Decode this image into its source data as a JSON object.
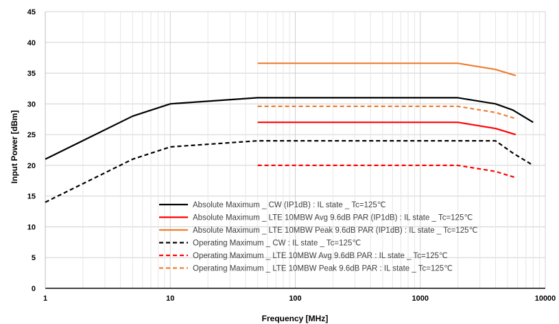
{
  "chart_data": {
    "type": "line",
    "xlabel": "Frequency [MHz]",
    "ylabel": "Input Power [dBm]",
    "x_scale": "log",
    "xlim": [
      1,
      10000
    ],
    "ylim": [
      0,
      45
    ],
    "grid": true,
    "legend_position": "bottom-center",
    "x_ticks": [
      {
        "value": 1,
        "label": "1"
      },
      {
        "value": 10,
        "label": "10"
      },
      {
        "value": 100,
        "label": "100"
      },
      {
        "value": 1000,
        "label": "1000"
      },
      {
        "value": 10000,
        "label": "10000"
      }
    ],
    "y_ticks": [
      {
        "value": 0,
        "label": "0"
      },
      {
        "value": 5,
        "label": "5"
      },
      {
        "value": 10,
        "label": "10"
      },
      {
        "value": 15,
        "label": "15"
      },
      {
        "value": 20,
        "label": "20"
      },
      {
        "value": 25,
        "label": "25"
      },
      {
        "value": 30,
        "label": "30"
      },
      {
        "value": 35,
        "label": "35"
      },
      {
        "value": 40,
        "label": "40"
      },
      {
        "value": 45,
        "label": "45"
      }
    ],
    "series": [
      {
        "name": "Absolute Maximum _ CW (IP1dB) : IL state _ Tc=125℃",
        "color": "#000000",
        "dash": "solid",
        "x": [
          1,
          5,
          10,
          50,
          2000,
          4000,
          5500,
          8000
        ],
        "y": [
          21,
          28,
          30,
          31,
          31,
          30,
          29,
          27
        ]
      },
      {
        "name": "Absolute Maximum _ LTE 10MBW Avg 9.6dB PAR (IP1dB) : IL state _ Tc=125℃",
        "color": "#ff0000",
        "dash": "solid",
        "x": [
          50,
          2000,
          4000,
          5800
        ],
        "y": [
          27,
          27,
          26,
          25
        ]
      },
      {
        "name": "Absolute Maximum _ LTE 10MBW Peak 9.6dB PAR (IP1dB) : IL state _ Tc=125℃",
        "color": "#ed7d31",
        "dash": "solid",
        "x": [
          50,
          2000,
          4000,
          5800
        ],
        "y": [
          36.6,
          36.6,
          35.6,
          34.6
        ]
      },
      {
        "name": "Operating Maximum _ CW : IL state _ Tc=125℃",
        "color": "#000000",
        "dash": "dashed",
        "x": [
          1,
          5,
          10,
          50,
          2000,
          4000,
          5500,
          8000
        ],
        "y": [
          14,
          21,
          23,
          24,
          24,
          24,
          22,
          20
        ]
      },
      {
        "name": "Operating Maximum _ LTE 10MBW Avg 9.6dB PAR : IL state _ Tc=125℃",
        "color": "#ff0000",
        "dash": "dashed",
        "x": [
          50,
          2000,
          4000,
          5800
        ],
        "y": [
          20,
          20,
          19,
          18
        ]
      },
      {
        "name": "Operating Maximum _ LTE 10MBW Peak 9.6dB PAR : IL state _ Tc=125℃",
        "color": "#ed7d31",
        "dash": "dashed",
        "x": [
          50,
          2000,
          4000,
          5800
        ],
        "y": [
          29.6,
          29.6,
          28.6,
          27.6
        ]
      }
    ]
  }
}
